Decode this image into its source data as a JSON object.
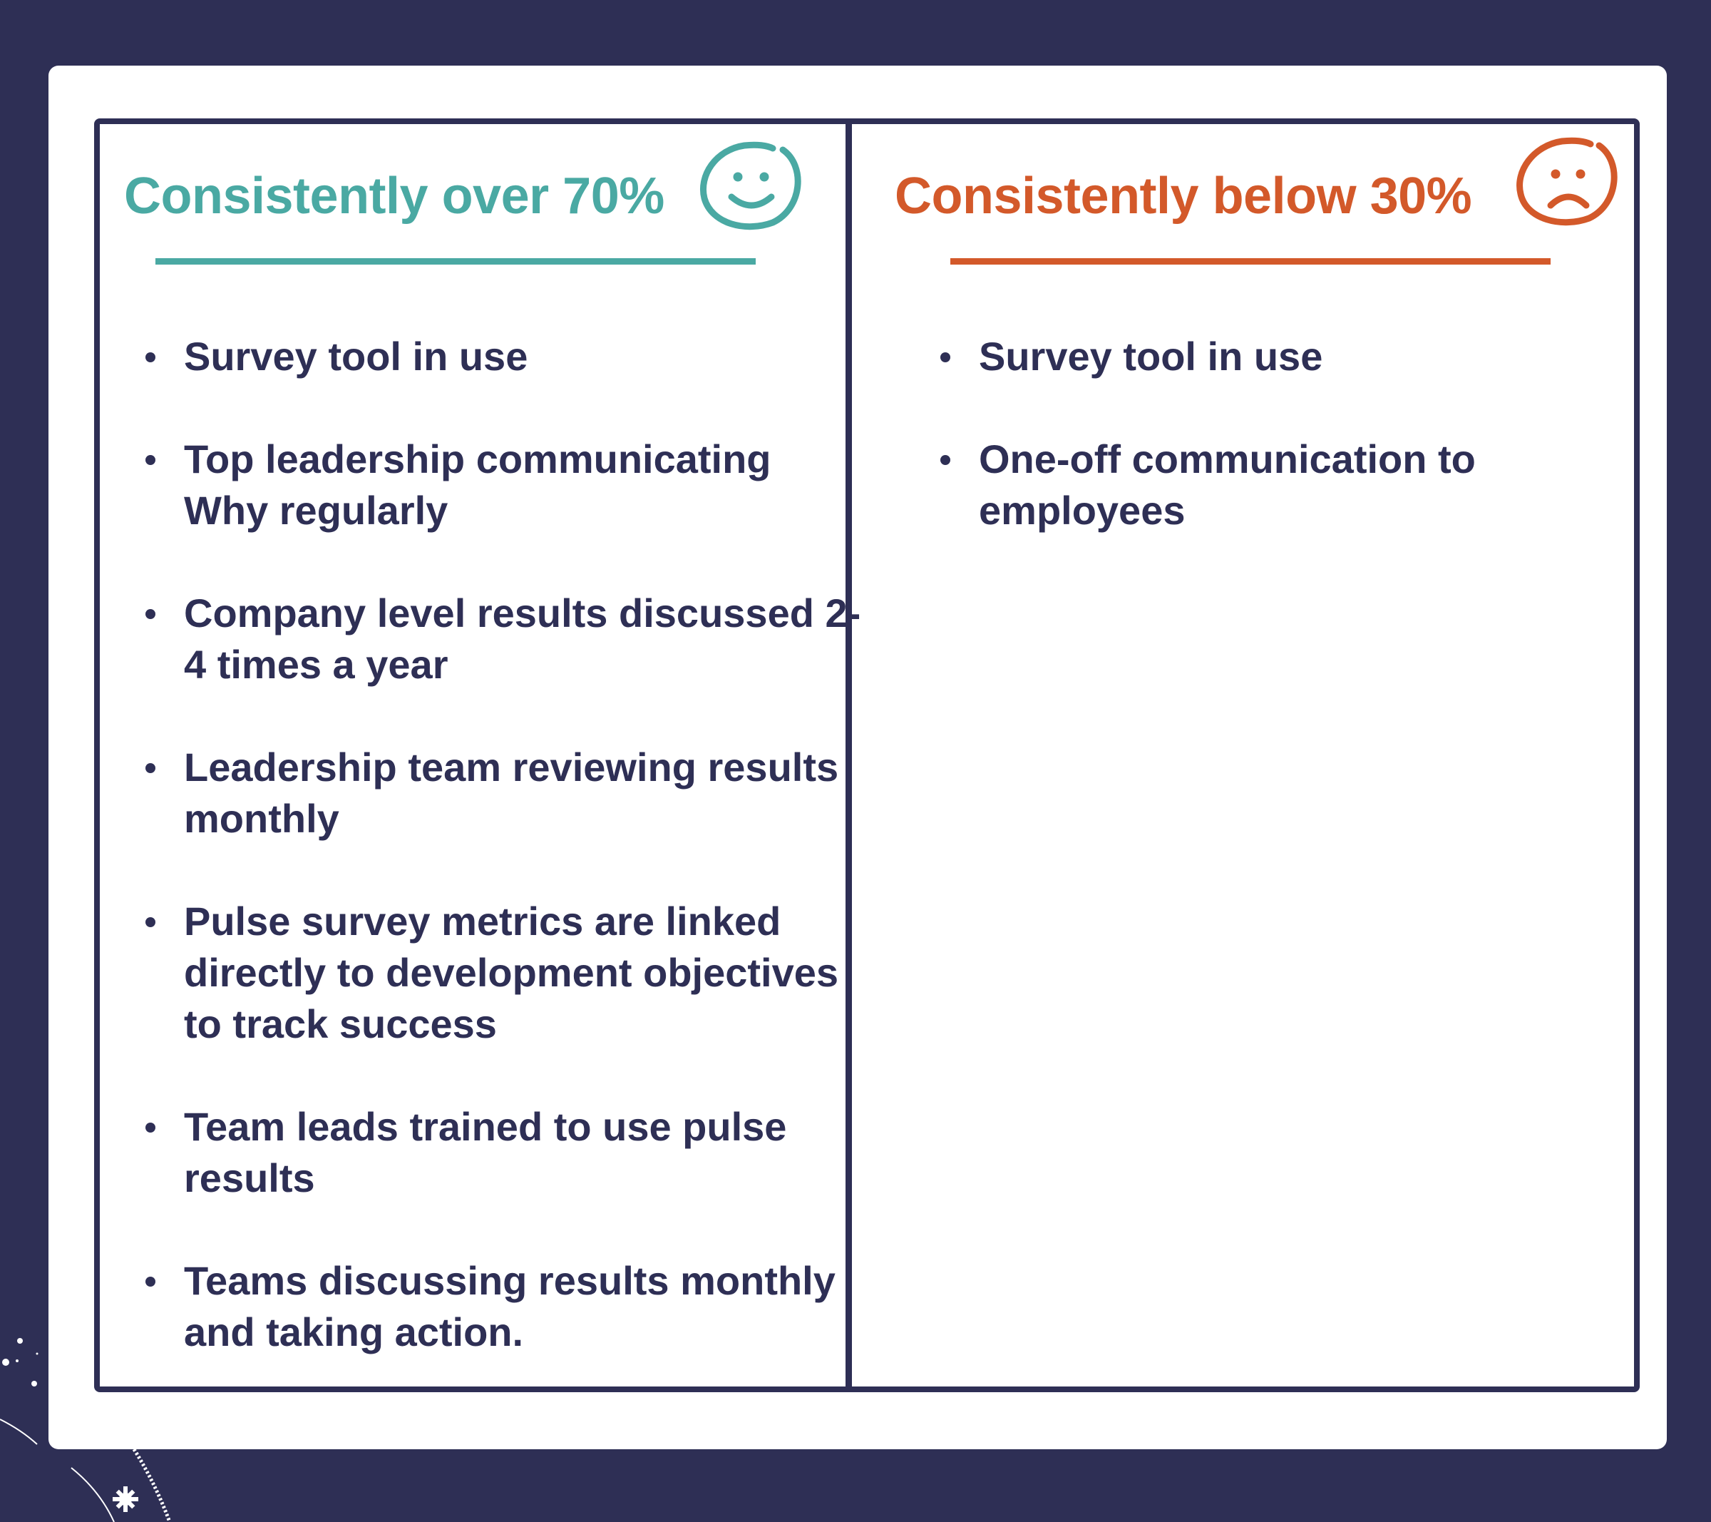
{
  "colors": {
    "background": "#2e2f55",
    "card": "#ffffff",
    "positive": "#4aa9a3",
    "negative": "#d3592a",
    "text": "#2e2f55"
  },
  "left": {
    "heading": "Consistently over 70%",
    "icon": "smiley-face-icon",
    "items": [
      "Survey tool in use",
      "Top leadership communicating Why regularly",
      "Company level results discussed 2-4 times a year",
      "Leadership team reviewing results monthly",
      "Pulse survey metrics are linked directly to development objectives to track success",
      "Team leads trained to use pulse results",
      "Teams discussing results monthly and taking action."
    ]
  },
  "right": {
    "heading": "Consistently below 30%",
    "icon": "sad-face-icon",
    "items": [
      "Survey tool in use",
      "One-off communication to employees"
    ]
  }
}
